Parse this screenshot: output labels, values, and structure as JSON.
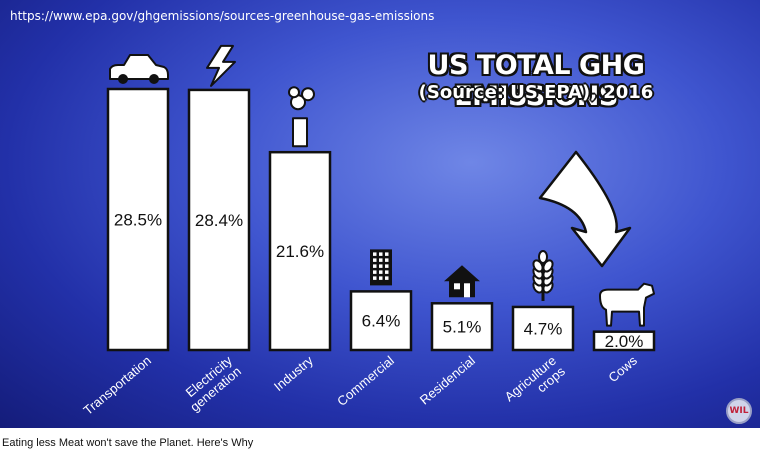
{
  "url": "https://www.epa.gov/ghgemissions/sources-greenhouse-gas-emissions",
  "caption": "Eating less Meat won't save the Planet. Here's Why",
  "watermark": "WIL",
  "chart_data": {
    "type": "bar",
    "title": "US TOTAL GHG EMISSIONS",
    "subtitle": "(Source: US EPA), 2016",
    "categories": [
      "Transportation",
      "Electricity generation",
      "Industry",
      "Commercial",
      "Residencial",
      "Agriculture crops",
      "Cows"
    ],
    "category_lines": [
      [
        "Transportation"
      ],
      [
        "Electricity",
        "generation"
      ],
      [
        "Industry"
      ],
      [
        "Commercial"
      ],
      [
        "Residencial"
      ],
      [
        "Agriculture",
        "crops"
      ],
      [
        "Cows"
      ]
    ],
    "values": [
      28.5,
      28.4,
      21.6,
      6.4,
      5.1,
      4.7,
      2.0
    ],
    "value_labels": [
      "28.5%",
      "28.4%",
      "21.6%",
      "6.4%",
      "5.1%",
      "4.7%",
      "2.0%"
    ],
    "icons": [
      "car-icon",
      "lightning-icon",
      "factory-icon",
      "building-icon",
      "house-icon",
      "wheat-icon",
      "cow-icon"
    ],
    "annotations": [
      "arrow pointing to Cows"
    ],
    "ylim": [
      0,
      28.5
    ],
    "grid": false,
    "legend": "none",
    "colors": {
      "bar": "#ffffff",
      "outline": "#111111",
      "background": "#3f55cf"
    }
  }
}
